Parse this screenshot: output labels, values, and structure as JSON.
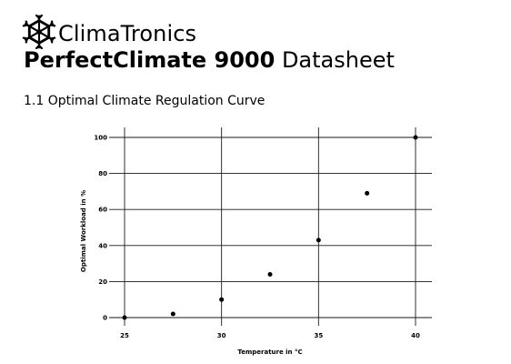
{
  "brand": {
    "name": "ClimaTronics",
    "icon": "snowflake-icon"
  },
  "document": {
    "title_bold": "PerfectClimate 9000",
    "title_regular": "Datasheet"
  },
  "section": {
    "title": "1.1 Optimal Climate Regulation Curve"
  },
  "chart_data": {
    "type": "scatter",
    "title": "",
    "xlabel": "Temperature in °C",
    "ylabel": "Optimal Workload in %",
    "x": [
      25,
      27.5,
      30,
      32.5,
      35,
      37.5,
      40
    ],
    "y": [
      0,
      2,
      10,
      24,
      43,
      69,
      100
    ],
    "xlim": [
      25,
      40
    ],
    "ylim": [
      0,
      100
    ],
    "xticks": [
      25,
      30,
      35,
      40
    ],
    "yticks": [
      0,
      20,
      40,
      60,
      80,
      100
    ],
    "grid": true,
    "point_color": "#000000"
  }
}
